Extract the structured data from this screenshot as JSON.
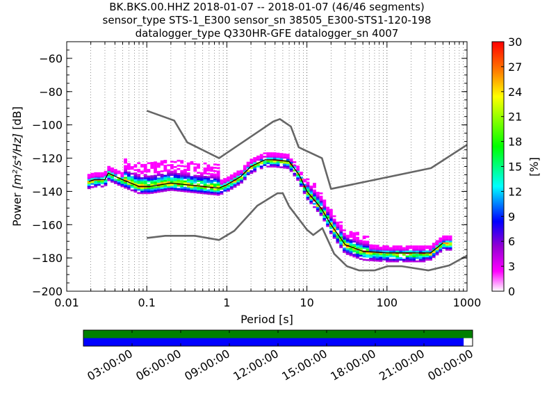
{
  "titles": [
    "BK.BKS.00.HHZ   2018-01-07 -- 2018-01-07  (46/46 segments)",
    "sensor_type STS-1_E300 sensor_sn 38505_E300-STS1-120-198",
    "datalogger_type Q330HR-GFE datalogger_sn 4007"
  ],
  "chart_data": [
    {
      "type": "heatmap",
      "xlabel": "Period [s]",
      "ylabel_prefix": "Power ",
      "ylabel_unit": "[m²/s⁴/Hz]",
      "ylabel_suffix": " [dB]",
      "x_scale": "log",
      "xlim": [
        0.01,
        1000
      ],
      "ylim": [
        -200,
        -50
      ],
      "x_ticks": [
        0.01,
        0.1,
        1,
        10,
        100,
        1000
      ],
      "x_tick_labels": [
        "0.01",
        "0.1",
        "1",
        "10",
        "100",
        "1000"
      ],
      "y_ticks": [
        -200,
        -180,
        -160,
        -140,
        -120,
        -100,
        -80,
        -60
      ],
      "y_tick_labels": [
        "−200",
        "−180",
        "−160",
        "−140",
        "−120",
        "−100",
        "−80",
        "−60"
      ],
      "grid": "dotted vertical at log decades",
      "colorbar": {
        "label": "[%]",
        "range": [
          0,
          30
        ],
        "ticks": [
          0,
          3,
          6,
          9,
          12,
          15,
          18,
          21,
          24,
          27,
          30
        ],
        "colors": [
          "#ffffff",
          "#ff00ff",
          "#9400d3",
          "#0000ff",
          "#00ffff",
          "#00ff00",
          "#ffff00",
          "#ff8000",
          "#ff0000"
        ]
      },
      "series": [
        {
          "name": "",
          "role": "upper noise model",
          "x": [
            0.1,
            0.22,
            0.32,
            0.8,
            3.8,
            4.6,
            6.3,
            7.9,
            15.4,
            20,
            354.8,
            1000
          ],
          "y": [
            -91.5,
            -97.4,
            -110.5,
            -120,
            -98,
            -96.5,
            -101,
            -113.5,
            -120,
            -138.5,
            -126,
            -112
          ]
        },
        {
          "name": "",
          "role": "lower noise model",
          "x": [
            0.1,
            0.17,
            0.4,
            0.8,
            1.24,
            2.4,
            4.3,
            5,
            6,
            10,
            12,
            15.6,
            21.9,
            31.6,
            45,
            70,
            101,
            154,
            328,
            600,
            1000
          ],
          "y": [
            -168,
            -166.7,
            -166.7,
            -169.2,
            -163.7,
            -148.6,
            -141.1,
            -141.1,
            -149,
            -163,
            -166.2,
            -162.1,
            -177.5,
            -185,
            -187.5,
            -187.5,
            -185,
            -185,
            -187.5,
            -184.5,
            -178.6
          ]
        },
        {
          "name": "",
          "role": "mode of PSD distribution",
          "x": [
            0.019,
            0.022,
            0.03,
            0.033,
            0.05,
            0.08,
            0.11,
            0.2,
            0.5,
            0.8,
            1,
            1.5,
            2,
            3,
            4,
            6,
            8,
            10,
            15,
            20,
            30,
            50,
            100,
            200,
            350,
            500
          ],
          "y": [
            -134,
            -133,
            -133,
            -129,
            -133,
            -137,
            -137,
            -135,
            -137,
            -138,
            -136,
            -131,
            -125,
            -121,
            -121,
            -122,
            -130,
            -140,
            -150,
            -160,
            -172,
            -176,
            -177,
            -177,
            -177,
            -171
          ]
        }
      ]
    },
    {
      "type": "bar",
      "role": "data availability",
      "x_ticks": [
        "03:00:00",
        "06:00:00",
        "09:00:00",
        "12:00:00",
        "15:00:00",
        "18:00:00",
        "21:00:00",
        "00:00:00"
      ],
      "rows": [
        {
          "name": "",
          "color": "#008000",
          "coverage_fraction": 1.0
        },
        {
          "name": "",
          "color": "#0000ff",
          "coverage_fraction": 0.977
        }
      ]
    }
  ]
}
